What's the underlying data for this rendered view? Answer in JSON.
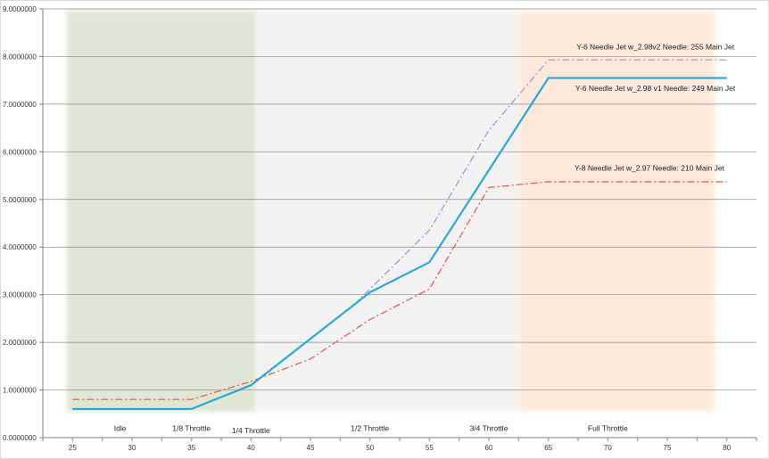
{
  "chart_data": {
    "type": "line",
    "title": "",
    "xlabel": "",
    "ylabel": "",
    "xlim": [
      22.5,
      82.5
    ],
    "ylim": [
      0,
      9
    ],
    "grid": true,
    "x_ticks": [
      25,
      30,
      35,
      40,
      45,
      50,
      55,
      60,
      65,
      70,
      75,
      80
    ],
    "x_tick_labels": [
      "25",
      "30",
      "35",
      "40",
      "45",
      "50",
      "55",
      "60",
      "65",
      "70",
      "75",
      "80"
    ],
    "y_ticks": [
      0,
      1,
      2,
      3,
      4,
      5,
      6,
      7,
      8,
      9
    ],
    "y_tick_labels": [
      "0.0000000",
      "1.0000000",
      "2.0000000",
      "3.0000000",
      "4.0000000",
      "5.0000000",
      "6.0000000",
      "7.0000000",
      "8.0000000",
      "9.0000000"
    ],
    "zones": [
      {
        "from": 24.5,
        "to": 40.5,
        "color": "#dfe6d3"
      },
      {
        "from": 40.5,
        "to": 62.5,
        "color": "#f2f2f2"
      },
      {
        "from": 62.5,
        "to": 79.0,
        "color": "#fde9dc"
      }
    ],
    "zone_labels": [
      {
        "text": "Idle",
        "x": 29,
        "y": 0.2
      },
      {
        "text": "1/8 Throttle",
        "x": 35,
        "y": 0.2
      },
      {
        "text": "1/4 Throttle",
        "x": 40,
        "y": 0.15
      },
      {
        "text": "1/2 Throttle",
        "x": 50,
        "y": 0.2
      },
      {
        "text": "3/4 Throttle",
        "x": 60,
        "y": 0.2
      },
      {
        "text": "Full Throttle",
        "x": 70,
        "y": 0.2
      }
    ],
    "series": [
      {
        "name": "Y-6 Needle Jet w_2.98v2 Needle: 255 Main Jet",
        "color": "#8e9ac8",
        "style": "dashdot",
        "x": [
          25,
          35,
          40,
          48.5,
          55,
          60,
          65,
          80
        ],
        "y": [
          0.6,
          0.6,
          1.1,
          2.75,
          4.35,
          6.45,
          7.93,
          7.93
        ],
        "label_pos": {
          "x": 74,
          "y": 8.15
        }
      },
      {
        "name": "Y-6 Needle Jet w_2.98 v1 Needle: 249 Main Jet",
        "color": "#2aa8d8",
        "style": "solid",
        "x": [
          25,
          35,
          40,
          50,
          55,
          65,
          80
        ],
        "y": [
          0.6,
          0.6,
          1.1,
          3.05,
          3.68,
          7.55,
          7.55
        ],
        "label_pos": {
          "x": 74,
          "y": 7.28
        }
      },
      {
        "name": "Y-8 Needle Jet w_2.97 Needle: 210 Main Jet",
        "color": "#e0554a",
        "style": "dashdot",
        "x": [
          25,
          35,
          40,
          45,
          50,
          55,
          60,
          65,
          80
        ],
        "y": [
          0.8,
          0.8,
          1.18,
          1.65,
          2.48,
          3.12,
          5.25,
          5.37,
          5.37
        ],
        "label_pos": {
          "x": 73.5,
          "y": 5.6
        }
      }
    ]
  }
}
